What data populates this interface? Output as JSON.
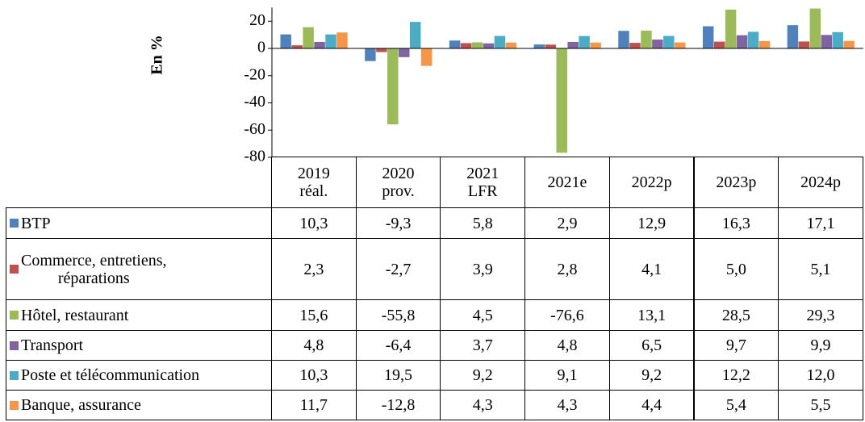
{
  "chart_data": {
    "type": "bar",
    "y_label": "En %",
    "categories": [
      "2019\nréal.",
      "2020\nprov.",
      "2021\nLFR",
      "2021e",
      "2022p",
      "2023p",
      "2024p"
    ],
    "ylim": [
      -80,
      30
    ],
    "yticks": [
      -80,
      -60,
      -40,
      -20,
      0,
      20
    ],
    "series": [
      {
        "name": "BTP",
        "color": "#4f81bd",
        "values": [
          10.3,
          -9.3,
          5.8,
          2.9,
          12.9,
          16.3,
          17.1
        ],
        "value_labels": [
          "10,3",
          "-9,3",
          "5,8",
          "2,9",
          "12,9",
          "16,3",
          "17,1"
        ]
      },
      {
        "name": "Commerce, entretiens,\nréparations",
        "color": "#c0504d",
        "values": [
          2.3,
          -2.7,
          3.9,
          2.8,
          4.1,
          5.0,
          5.1
        ],
        "value_labels": [
          "2,3",
          "-2,7",
          "3,9",
          "2,8",
          "4,1",
          "5,0",
          "5,1"
        ]
      },
      {
        "name": "Hôtel, restaurant",
        "color": "#9bbb59",
        "values": [
          15.6,
          -55.8,
          4.5,
          -76.6,
          13.1,
          28.5,
          29.3
        ],
        "value_labels": [
          "15,6",
          "-55,8",
          "4,5",
          "-76,6",
          "13,1",
          "28,5",
          "29,3"
        ]
      },
      {
        "name": "Transport",
        "color": "#8064a2",
        "values": [
          4.8,
          -6.4,
          3.7,
          4.8,
          6.5,
          9.7,
          9.9
        ],
        "value_labels": [
          "4,8",
          "-6,4",
          "3,7",
          "4,8",
          "6,5",
          "9,7",
          "9,9"
        ]
      },
      {
        "name": "Poste et télécommunication",
        "color": "#4bacc6",
        "values": [
          10.3,
          19.5,
          9.2,
          9.1,
          9.2,
          12.2,
          12.0
        ],
        "value_labels": [
          "10,3",
          "19,5",
          "9,2",
          "9,1",
          "9,2",
          "12,2",
          "12,0"
        ]
      },
      {
        "name": "Banque, assurance",
        "color": "#f79646",
        "values": [
          11.7,
          -12.8,
          4.3,
          4.3,
          4.4,
          5.4,
          5.5
        ],
        "value_labels": [
          "11,7",
          "-12,8",
          "4,3",
          "4,3",
          "4,4",
          "5,4",
          "5,5"
        ]
      }
    ]
  }
}
